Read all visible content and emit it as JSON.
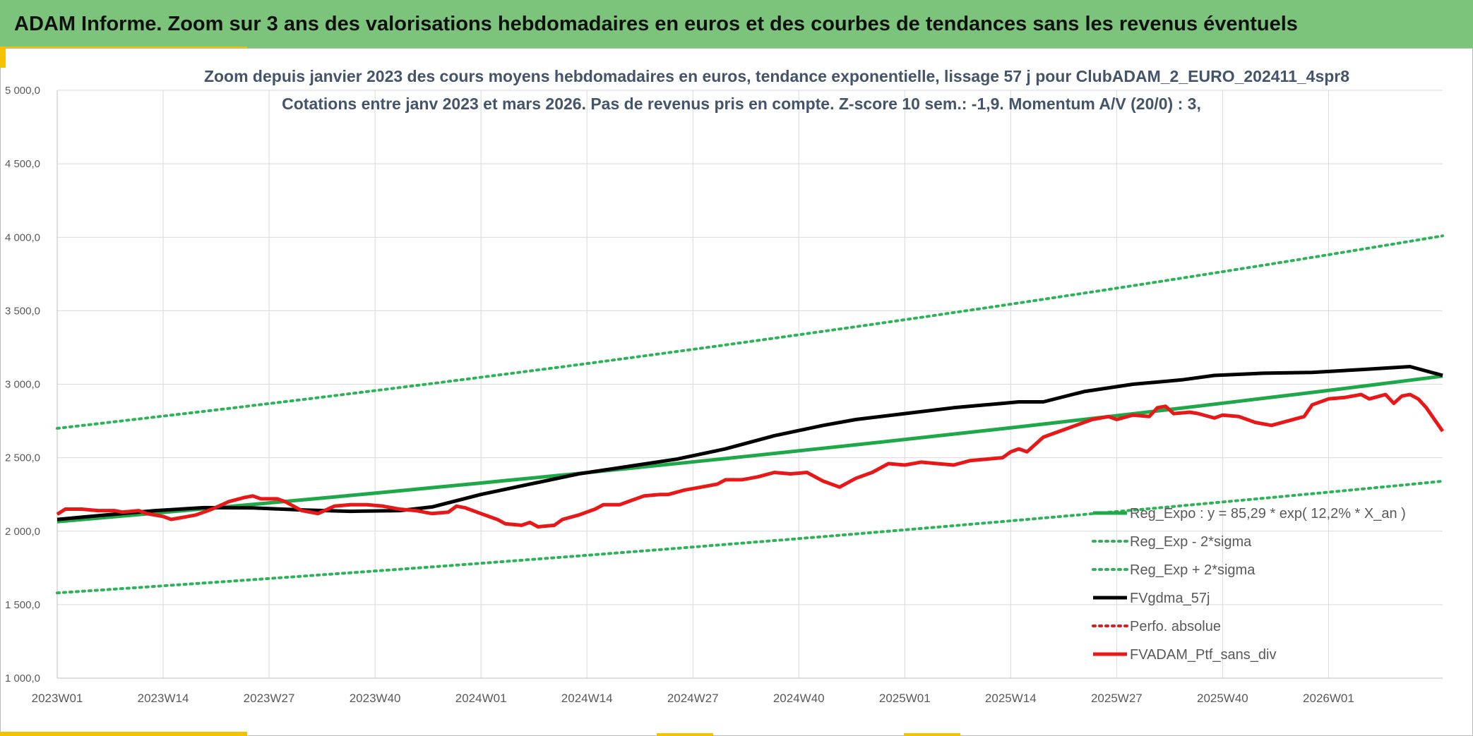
{
  "header": {
    "title": "ADAM Informe. Zoom sur 3 ans des valorisations hebdomadaires en euros et des courbes de tendances sans les revenus éventuels"
  },
  "colors": {
    "header_bg": "#7cc47c",
    "accent": "#f2c200",
    "trend": "#1fa84a",
    "sigma": "#2bb357",
    "smooth": "#000000",
    "perf": "#e81818",
    "portfolio": "#e81818",
    "grid": "#d9d9d9",
    "axis_text": "#595959"
  },
  "chart_data": {
    "type": "line",
    "title": "Zoom depuis janvier 2023 des cours moyens hebdomadaires en euros, tendance exponentielle, lissage 57 j pour ClubADAM_2_EURO_202411_4spr8",
    "subtitle": "Cotations entre janv 2023 et mars 2026. Pas de revenus pris en compte. Z-score 10 sem.: -1,9. Momentum A/V (20/0) : 3,",
    "xlabel": "",
    "ylabel": "",
    "ylim": [
      1000,
      5000
    ],
    "yticks": [
      1000,
      1500,
      2000,
      2500,
      3000,
      3500,
      4000,
      4500,
      5000
    ],
    "ytick_labels": [
      "1 000,0",
      "1 500,0",
      "2 000,0",
      "2 500,0",
      "3 000,0",
      "3 500,0",
      "4 000,0",
      "4 500,0",
      "5 000,0"
    ],
    "x_count": 170,
    "xtick_indices": [
      0,
      13,
      26,
      39,
      52,
      65,
      78,
      91,
      104,
      117,
      130,
      143,
      156
    ],
    "xtick_labels": [
      "2023W01",
      "2023W14",
      "2023W27",
      "2023W40",
      "2024W01",
      "2024W14",
      "2024W27",
      "2024W40",
      "2025W01",
      "2025W14",
      "2025W27",
      "2025W40",
      "2026W01"
    ],
    "grid": true,
    "legend_position": "bottom-right",
    "series": [
      {
        "name": "Reg_Expo : y = 85,29 * exp( 12,2% *  X_an )",
        "style": "solid-thick",
        "color": "#1fa84a",
        "start": 2065,
        "end": 3055
      },
      {
        "name": "Reg_Exp - 2*sigma",
        "style": "dotted",
        "color": "#2bb357",
        "start": 1580,
        "end": 2340
      },
      {
        "name": "Reg_Exp + 2*sigma",
        "style": "dotted",
        "color": "#2bb357",
        "start": 2700,
        "end": 4010
      },
      {
        "name": "FVgdma_57j",
        "style": "solid-thick",
        "color": "#000000",
        "points": [
          [
            0,
            2080
          ],
          [
            6,
            2110
          ],
          [
            12,
            2140
          ],
          [
            18,
            2160
          ],
          [
            24,
            2158
          ],
          [
            30,
            2145
          ],
          [
            36,
            2135
          ],
          [
            42,
            2140
          ],
          [
            46,
            2165
          ],
          [
            52,
            2250
          ],
          [
            58,
            2320
          ],
          [
            64,
            2390
          ],
          [
            70,
            2440
          ],
          [
            76,
            2490
          ],
          [
            82,
            2560
          ],
          [
            88,
            2650
          ],
          [
            94,
            2720
          ],
          [
            98,
            2760
          ],
          [
            104,
            2800
          ],
          [
            110,
            2840
          ],
          [
            116,
            2870
          ],
          [
            118,
            2880
          ],
          [
            121,
            2880
          ],
          [
            126,
            2950
          ],
          [
            132,
            3000
          ],
          [
            138,
            3030
          ],
          [
            142,
            3060
          ],
          [
            148,
            3075
          ],
          [
            154,
            3080
          ],
          [
            160,
            3100
          ],
          [
            166,
            3120
          ],
          [
            170,
            3060
          ]
        ]
      },
      {
        "name": "Perfo. absolue",
        "style": "dotted",
        "color": "#e81818",
        "points": []
      },
      {
        "name": "FVADAM_Ptf_sans_div",
        "style": "solid-thick",
        "color": "#e81818",
        "points": [
          [
            0,
            2115
          ],
          [
            1,
            2150
          ],
          [
            3,
            2150
          ],
          [
            5,
            2140
          ],
          [
            7,
            2140
          ],
          [
            8,
            2130
          ],
          [
            10,
            2140
          ],
          [
            11,
            2120
          ],
          [
            13,
            2100
          ],
          [
            14,
            2080
          ],
          [
            16,
            2100
          ],
          [
            17,
            2110
          ],
          [
            19,
            2150
          ],
          [
            21,
            2200
          ],
          [
            23,
            2230
          ],
          [
            24,
            2240
          ],
          [
            25,
            2220
          ],
          [
            27,
            2220
          ],
          [
            28,
            2200
          ],
          [
            30,
            2140
          ],
          [
            32,
            2120
          ],
          [
            34,
            2170
          ],
          [
            36,
            2180
          ],
          [
            38,
            2180
          ],
          [
            40,
            2170
          ],
          [
            42,
            2150
          ],
          [
            44,
            2140
          ],
          [
            46,
            2120
          ],
          [
            48,
            2130
          ],
          [
            49,
            2170
          ],
          [
            50,
            2160
          ],
          [
            52,
            2120
          ],
          [
            54,
            2080
          ],
          [
            55,
            2050
          ],
          [
            57,
            2040
          ],
          [
            58,
            2060
          ],
          [
            59,
            2030
          ],
          [
            61,
            2040
          ],
          [
            62,
            2080
          ],
          [
            64,
            2110
          ],
          [
            66,
            2150
          ],
          [
            67,
            2180
          ],
          [
            69,
            2180
          ],
          [
            70,
            2200
          ],
          [
            72,
            2240
          ],
          [
            74,
            2250
          ],
          [
            75,
            2250
          ],
          [
            77,
            2280
          ],
          [
            79,
            2300
          ],
          [
            81,
            2320
          ],
          [
            82,
            2350
          ],
          [
            84,
            2350
          ],
          [
            86,
            2370
          ],
          [
            88,
            2400
          ],
          [
            90,
            2390
          ],
          [
            92,
            2400
          ],
          [
            94,
            2340
          ],
          [
            96,
            2300
          ],
          [
            98,
            2360
          ],
          [
            100,
            2400
          ],
          [
            102,
            2460
          ],
          [
            104,
            2450
          ],
          [
            106,
            2470
          ],
          [
            108,
            2460
          ],
          [
            110,
            2450
          ],
          [
            112,
            2480
          ],
          [
            114,
            2490
          ],
          [
            116,
            2500
          ],
          [
            117,
            2540
          ],
          [
            118,
            2560
          ],
          [
            119,
            2540
          ],
          [
            121,
            2640
          ],
          [
            123,
            2680
          ],
          [
            125,
            2720
          ],
          [
            127,
            2760
          ],
          [
            129,
            2780
          ],
          [
            130,
            2760
          ],
          [
            132,
            2790
          ],
          [
            134,
            2780
          ],
          [
            135,
            2840
          ],
          [
            136,
            2850
          ],
          [
            137,
            2800
          ],
          [
            139,
            2810
          ],
          [
            140,
            2800
          ],
          [
            142,
            2770
          ],
          [
            143,
            2790
          ],
          [
            145,
            2780
          ],
          [
            147,
            2740
          ],
          [
            149,
            2720
          ],
          [
            151,
            2750
          ],
          [
            153,
            2780
          ],
          [
            154,
            2860
          ],
          [
            156,
            2900
          ],
          [
            158,
            2910
          ],
          [
            160,
            2930
          ],
          [
            161,
            2900
          ],
          [
            163,
            2930
          ],
          [
            164,
            2870
          ],
          [
            165,
            2920
          ],
          [
            166,
            2930
          ],
          [
            167,
            2900
          ],
          [
            168,
            2840
          ],
          [
            170,
            2680
          ]
        ]
      }
    ]
  }
}
